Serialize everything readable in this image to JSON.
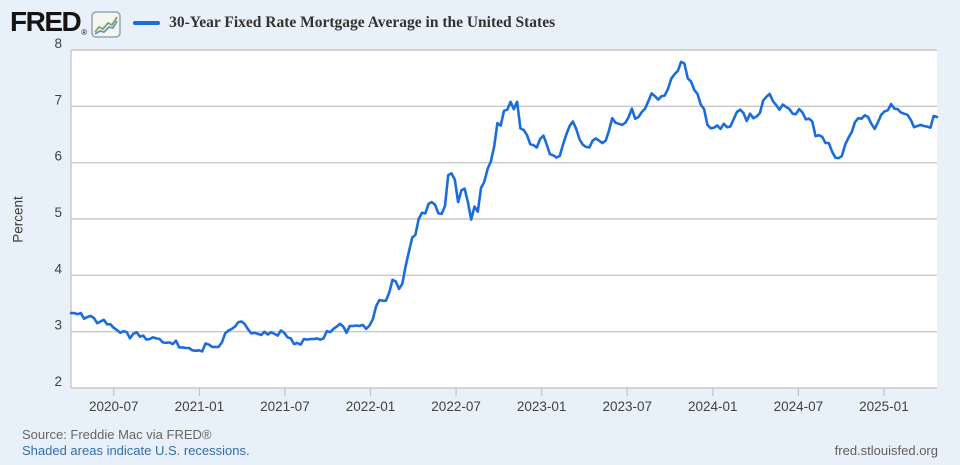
{
  "header": {
    "logo_text": "FRED",
    "logo_reg": "®"
  },
  "legend": {
    "title": "30-Year Fixed Rate Mortgage Average in the United States"
  },
  "footer": {
    "source": "Source: Freddie Mac via FRED®",
    "recession_note": "Shaded areas indicate U.S. recessions.",
    "site": "fred.stlouisfed.org"
  },
  "colors": {
    "background": "#e8f0f9",
    "plot_background": "#ffffff",
    "gridline": "#c9c9c9",
    "line": "#1b6ddb",
    "link": "#336eac"
  },
  "chart_data": {
    "type": "line",
    "title": "30-Year Fixed Rate Mortgage Average in the United States",
    "ylabel": "Percent",
    "ylim": [
      2,
      8
    ],
    "y_ticks": [
      8,
      7,
      6,
      5,
      4,
      3,
      2
    ],
    "x_range": [
      2020.25,
      2025.31
    ],
    "x_ticks": [
      {
        "label": "2020-07",
        "t": 2020.5
      },
      {
        "label": "2021-01",
        "t": 2021.0
      },
      {
        "label": "2021-07",
        "t": 2021.5
      },
      {
        "label": "2022-01",
        "t": 2022.0
      },
      {
        "label": "2022-07",
        "t": 2022.5
      },
      {
        "label": "2023-01",
        "t": 2023.0
      },
      {
        "label": "2023-07",
        "t": 2023.5
      },
      {
        "label": "2024-01",
        "t": 2024.0
      },
      {
        "label": "2024-07",
        "t": 2024.5
      },
      {
        "label": "2025-01",
        "t": 2025.0
      }
    ],
    "frequency": "weekly",
    "grid": "horizontal",
    "legend_position": "top",
    "series": [
      {
        "name": "30-Year Fixed Rate Mortgage Average in the United States",
        "color": "#1b6ddb",
        "values": [
          3.33,
          3.33,
          3.31,
          3.33,
          3.23,
          3.26,
          3.28,
          3.24,
          3.15,
          3.18,
          3.21,
          3.13,
          3.13,
          3.07,
          3.03,
          2.98,
          3.01,
          2.99,
          2.88,
          2.96,
          2.99,
          2.91,
          2.93,
          2.86,
          2.87,
          2.9,
          2.88,
          2.87,
          2.81,
          2.8,
          2.81,
          2.78,
          2.84,
          2.72,
          2.72,
          2.71,
          2.71,
          2.67,
          2.66,
          2.67,
          2.65,
          2.79,
          2.77,
          2.73,
          2.73,
          2.73,
          2.81,
          2.97,
          3.02,
          3.05,
          3.09,
          3.17,
          3.18,
          3.13,
          3.04,
          2.97,
          2.98,
          2.96,
          2.94,
          3.0,
          2.95,
          2.99,
          2.96,
          2.93,
          3.02,
          2.98,
          2.9,
          2.88,
          2.78,
          2.8,
          2.77,
          2.87,
          2.86,
          2.87,
          2.87,
          2.88,
          2.86,
          2.88,
          3.01,
          2.99,
          3.05,
          3.09,
          3.14,
          3.09,
          2.98,
          3.1,
          3.1,
          3.11,
          3.1,
          3.12,
          3.05,
          3.11,
          3.22,
          3.45,
          3.56,
          3.55,
          3.55,
          3.69,
          3.92,
          3.89,
          3.76,
          3.85,
          4.16,
          4.42,
          4.67,
          4.72,
          5.0,
          5.11,
          5.1,
          5.27,
          5.3,
          5.25,
          5.1,
          5.09,
          5.23,
          5.78,
          5.81,
          5.7,
          5.3,
          5.51,
          5.54,
          5.3,
          4.99,
          5.22,
          5.13,
          5.55,
          5.66,
          5.89,
          6.02,
          6.29,
          6.7,
          6.66,
          6.92,
          6.94,
          7.08,
          6.95,
          7.08,
          6.61,
          6.58,
          6.49,
          6.33,
          6.31,
          6.27,
          6.42,
          6.48,
          6.33,
          6.15,
          6.13,
          6.09,
          6.12,
          6.32,
          6.5,
          6.65,
          6.73,
          6.6,
          6.42,
          6.32,
          6.28,
          6.27,
          6.39,
          6.43,
          6.39,
          6.35,
          6.39,
          6.57,
          6.79,
          6.71,
          6.69,
          6.67,
          6.71,
          6.81,
          6.96,
          6.78,
          6.81,
          6.9,
          6.96,
          7.09,
          7.23,
          7.18,
          7.12,
          7.18,
          7.19,
          7.31,
          7.49,
          7.57,
          7.63,
          7.79,
          7.76,
          7.5,
          7.44,
          7.29,
          7.22,
          7.03,
          6.95,
          6.67,
          6.61,
          6.62,
          6.66,
          6.6,
          6.69,
          6.63,
          6.64,
          6.77,
          6.9,
          6.94,
          6.88,
          6.74,
          6.87,
          6.79,
          6.82,
          6.88,
          7.1,
          7.17,
          7.22,
          7.09,
          7.02,
          6.94,
          7.03,
          6.99,
          6.95,
          6.87,
          6.86,
          6.95,
          6.89,
          6.77,
          6.78,
          6.73,
          6.47,
          6.49,
          6.46,
          6.35,
          6.35,
          6.2,
          6.09,
          6.08,
          6.12,
          6.32,
          6.44,
          6.54,
          6.72,
          6.79,
          6.78,
          6.84,
          6.81,
          6.69,
          6.6,
          6.72,
          6.85,
          6.91,
          6.93,
          7.04,
          6.96,
          6.95,
          6.89,
          6.87,
          6.85,
          6.76,
          6.63,
          6.65,
          6.67,
          6.65,
          6.64,
          6.62,
          6.83,
          6.81
        ]
      }
    ]
  }
}
